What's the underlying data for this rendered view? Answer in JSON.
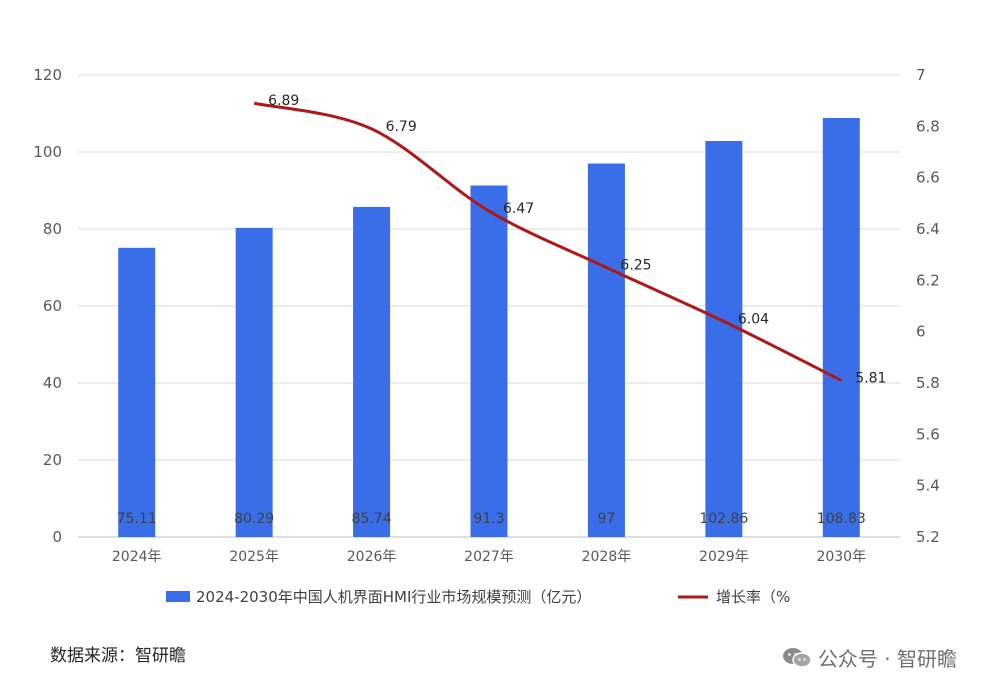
{
  "chart_data": {
    "type": "bar",
    "categories": [
      "2024年",
      "2025年",
      "2026年",
      "2027年",
      "2028年",
      "2029年",
      "2030年"
    ],
    "series": [
      {
        "name": "2024-2030年中国人机界面HMI行业市场规模预测（亿元）",
        "kind": "bar",
        "axis": "left",
        "values": [
          75.11,
          80.29,
          85.74,
          91.3,
          97,
          102.86,
          108.83
        ],
        "labels": [
          "75.11",
          "80.29",
          "85.74",
          "91.3",
          "97",
          "102.86",
          "108.83"
        ],
        "color": "#3a6ee8"
      },
      {
        "name": "增长率（%",
        "kind": "line",
        "axis": "right",
        "values": [
          null,
          6.89,
          6.79,
          6.47,
          6.25,
          6.04,
          5.81
        ],
        "labels": [
          "",
          "6.89",
          "6.79",
          "6.47",
          "6.25",
          "6.04",
          "5.81"
        ],
        "color": "#b01818"
      }
    ],
    "y_left": {
      "min": 0,
      "max": 120,
      "ticks": [
        "0",
        "20",
        "40",
        "60",
        "80",
        "100",
        "120"
      ]
    },
    "y_right": {
      "min": 5.2,
      "max": 7,
      "ticks": [
        "5.2",
        "5.4",
        "5.6",
        "5.8",
        "6",
        "6.2",
        "6.4",
        "6.6",
        "6.8",
        "7"
      ]
    },
    "grid": true,
    "legend_position": "bottom"
  },
  "footer": {
    "source": "数据来源：智研瞻",
    "watermark": "公众号 · 智研瞻"
  }
}
